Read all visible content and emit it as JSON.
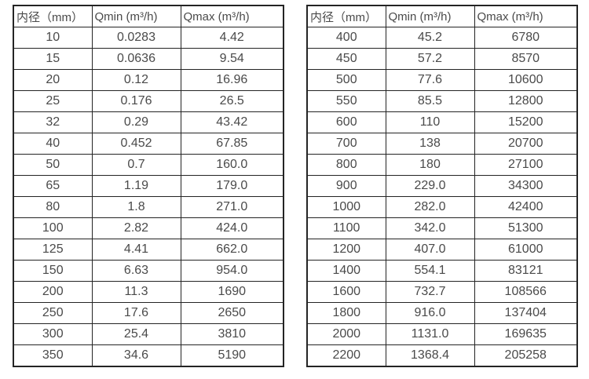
{
  "page": {
    "background_color": "#ffffff",
    "text_color": "#4a4a4a",
    "border_color": "#242424"
  },
  "tables": [
    {
      "name": "flow-range-table-small-diameters",
      "headers": [
        "内径（mm）",
        "Qmin (m³/h)",
        "Qmax (m³/h)"
      ],
      "rows": [
        [
          "10",
          "0.0283",
          "4.42"
        ],
        [
          "15",
          "0.0636",
          "9.54"
        ],
        [
          "20",
          "0.12",
          "16.96"
        ],
        [
          "25",
          "0.176",
          "26.5"
        ],
        [
          "32",
          "0.29",
          "43.42"
        ],
        [
          "40",
          "0.452",
          "67.85"
        ],
        [
          "50",
          "0.7",
          "160.0"
        ],
        [
          "65",
          "1.19",
          "179.0"
        ],
        [
          "80",
          "1.8",
          "271.0"
        ],
        [
          "100",
          "2.82",
          "424.0"
        ],
        [
          "125",
          "4.41",
          "662.0"
        ],
        [
          "150",
          "6.63",
          "954.0"
        ],
        [
          "200",
          "11.3",
          "1690"
        ],
        [
          "250",
          "17.6",
          "2650"
        ],
        [
          "300",
          "25.4",
          "3810"
        ],
        [
          "350",
          "34.6",
          "5190"
        ]
      ]
    },
    {
      "name": "flow-range-table-large-diameters",
      "headers": [
        "内径（mm）",
        "Qmin (m³/h)",
        "Qmax (m³/h)"
      ],
      "rows": [
        [
          "400",
          "45.2",
          "6780"
        ],
        [
          "450",
          "57.2",
          "8570"
        ],
        [
          "500",
          "77.6",
          "10600"
        ],
        [
          "550",
          "85.5",
          "12800"
        ],
        [
          "600",
          "110",
          "15200"
        ],
        [
          "700",
          "138",
          "20700"
        ],
        [
          "800",
          "180",
          "27100"
        ],
        [
          "900",
          "229.0",
          "34300"
        ],
        [
          "1000",
          "282.0",
          "42400"
        ],
        [
          "1100",
          "342.0",
          "51300"
        ],
        [
          "1200",
          "407.0",
          "61000"
        ],
        [
          "1400",
          "554.1",
          "83121"
        ],
        [
          "1600",
          "732.7",
          "108566"
        ],
        [
          "1800",
          "916.0",
          "137404"
        ],
        [
          "2000",
          "1131.0",
          "169635"
        ],
        [
          "2200",
          "1368.4",
          "205258"
        ]
      ]
    }
  ]
}
